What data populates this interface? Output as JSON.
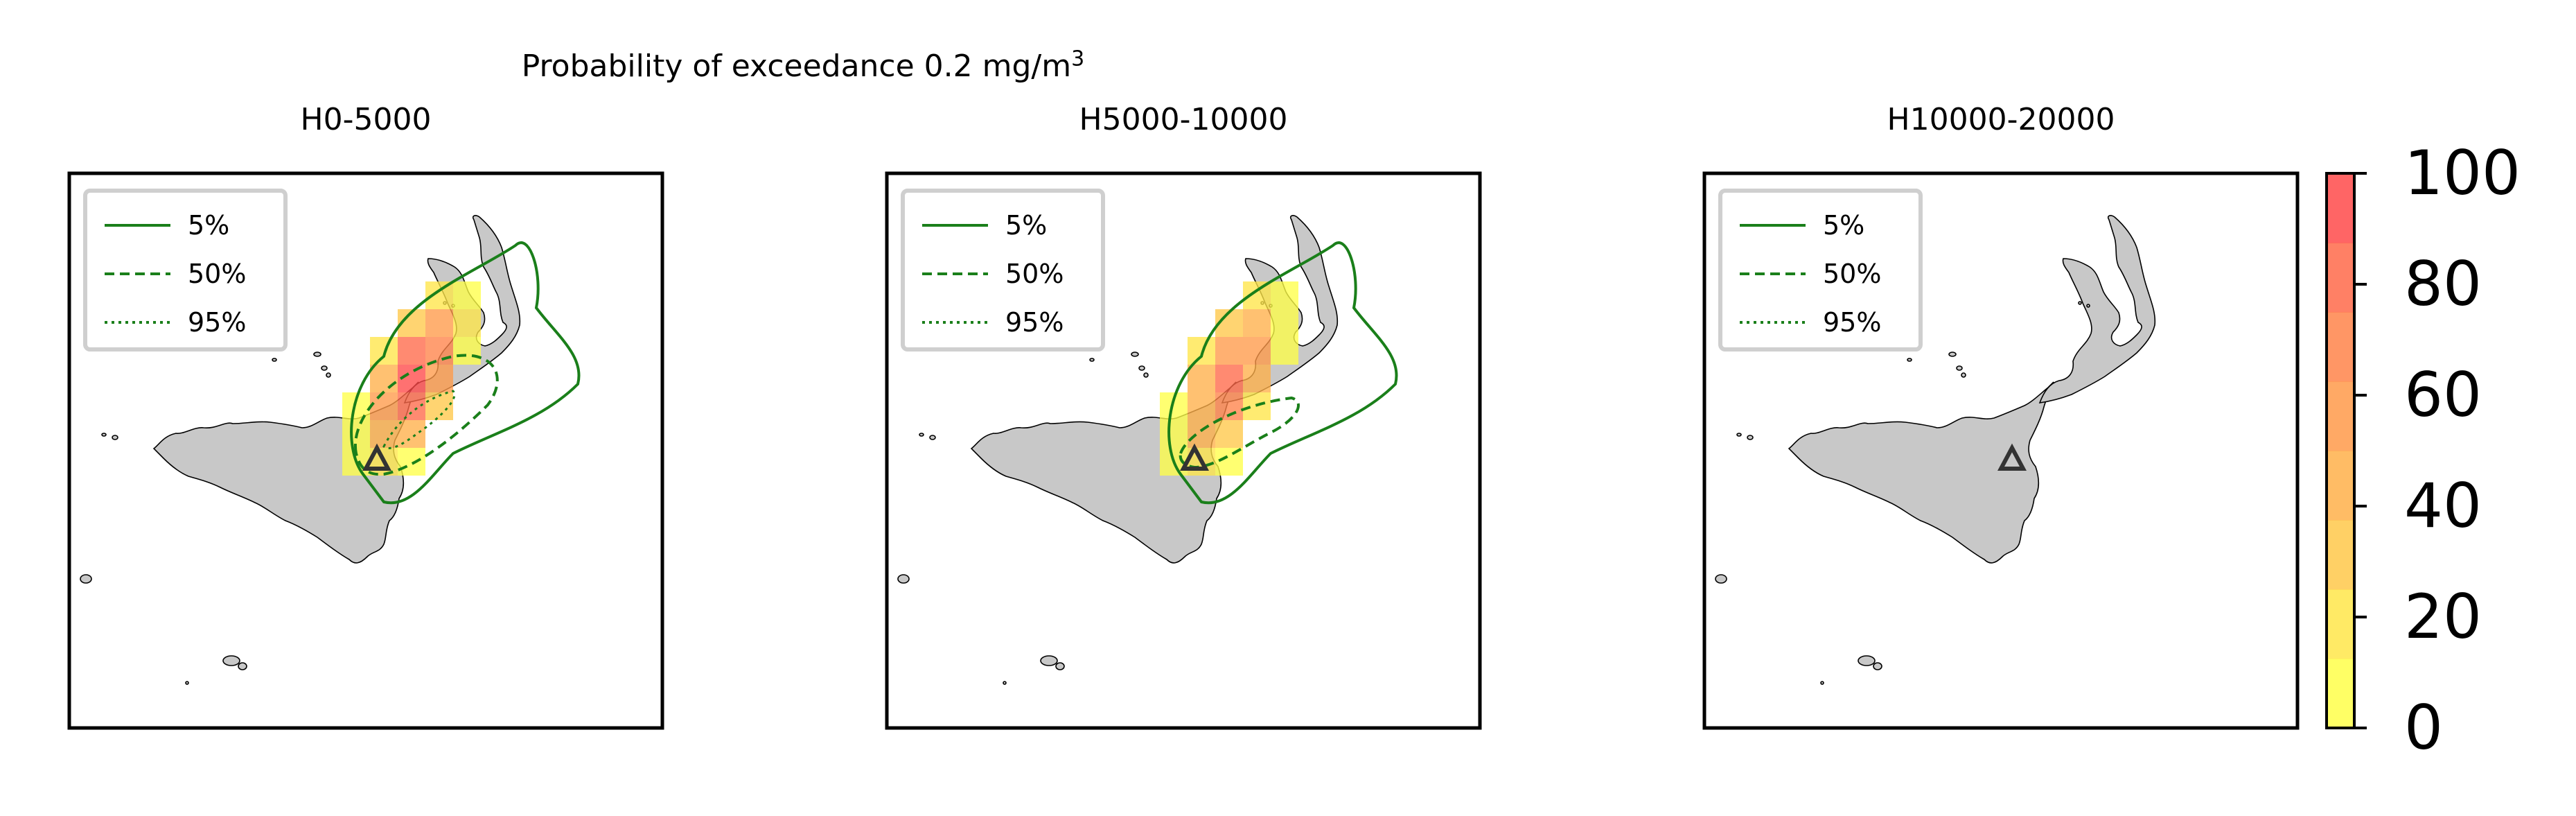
{
  "figure": {
    "suptitle": "Probability of exceedance 0.2 mg/m",
    "suptitle_sup": "3"
  },
  "chart_data": {
    "type": "heatmap",
    "title": "Probability of exceedance 0.2 mg/m³",
    "colorbar": {
      "range": [
        0,
        100
      ],
      "ticks": [
        "0",
        "20",
        "40",
        "60",
        "80",
        "100"
      ],
      "colors": [
        "#ffff4a",
        "#ffe64a",
        "#ffc84a",
        "#ffb04a",
        "#ff9a4a",
        "#ff844a",
        "#ff6a4a",
        "#ff4a4a"
      ]
    },
    "contour_legend": [
      {
        "label": "5%",
        "style": "solid"
      },
      {
        "label": "50%",
        "style": "dashed"
      },
      {
        "label": "95%",
        "style": "dotted"
      }
    ],
    "contour_color": "#1a7f1a",
    "land_color": "#c8c8c8",
    "vent_marker": "triangle",
    "panels": [
      {
        "title": "H0-5000",
        "max_probability": 95,
        "contours": [
          "5%",
          "50%",
          "95%"
        ],
        "grid_on": false,
        "legend": "upper-left"
      },
      {
        "title": "H5000-10000",
        "max_probability": 75,
        "contours": [
          "5%",
          "50%"
        ],
        "grid_on": false,
        "legend": "upper-left"
      },
      {
        "title": "H10000-20000",
        "max_probability": 0,
        "contours": [],
        "grid_on": false,
        "legend": "upper-left"
      }
    ]
  }
}
